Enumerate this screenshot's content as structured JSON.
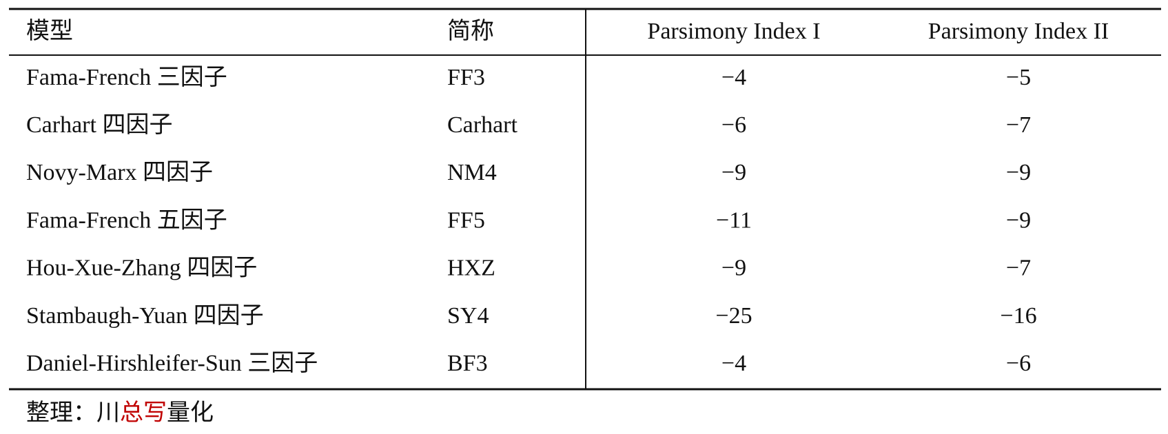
{
  "table": {
    "header": [
      "模型",
      "简称",
      "Parsimony Index I",
      "Parsimony Index II"
    ],
    "rows": [
      [
        "Fama-French 三因子",
        "FF3",
        "−4",
        "−5"
      ],
      [
        "Carhart 四因子",
        "Carhart",
        "−6",
        "−7"
      ],
      [
        "Novy-Marx 四因子",
        "NM4",
        "−9",
        "−9"
      ],
      [
        "Fama-French 五因子",
        "FF5",
        "−11",
        "−9"
      ],
      [
        "Hou-Xue-Zhang 四因子",
        "HXZ",
        "−9",
        "−7"
      ],
      [
        "Stambaugh-Yuan 四因子",
        "SY4",
        "−25",
        "−16"
      ],
      [
        "Daniel-Hirshleifer-Sun 三因子",
        "BF3",
        "−4",
        "−6"
      ]
    ]
  },
  "footer": [
    "整理：川",
    "总写",
    "量化"
  ]
}
